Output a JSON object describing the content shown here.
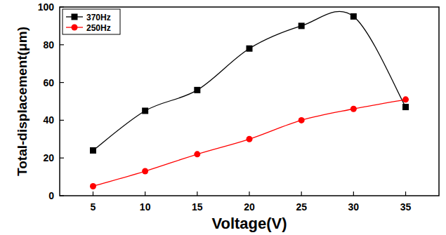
{
  "chart_data": {
    "type": "line",
    "x_label": "Voltage(V)",
    "y_label": "Total-displacement(μm)",
    "x": [
      5,
      10,
      15,
      20,
      25,
      30,
      35
    ],
    "series": [
      {
        "name": "370Hz",
        "color": "#000000",
        "marker": "square",
        "line_style": "smooth",
        "values": [
          24,
          45,
          56,
          78,
          90,
          95,
          47
        ]
      },
      {
        "name": "250Hz",
        "color": "#ff0000",
        "marker": "circle",
        "line_style": "smooth",
        "values": [
          5,
          13,
          22,
          30,
          40,
          46,
          51
        ]
      }
    ],
    "xlim": [
      1.8,
      38.2
    ],
    "xticks": [
      5,
      10,
      15,
      20,
      25,
      30,
      35
    ],
    "ylim": [
      0,
      100
    ],
    "yticks": [
      0,
      20,
      40,
      60,
      80,
      100
    ],
    "legend": "upper-left"
  }
}
